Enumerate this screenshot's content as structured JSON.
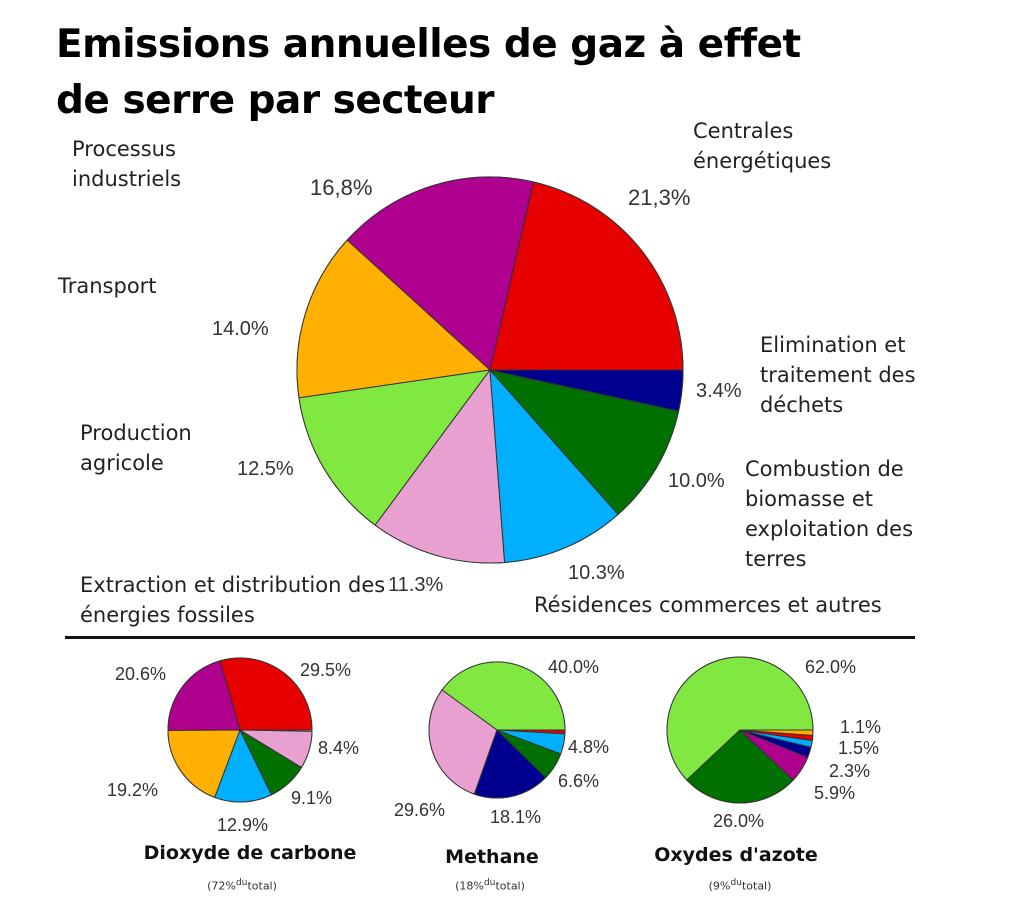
{
  "chart_data": [
    {
      "type": "pie",
      "title": "Emissions annuelles de gaz à effet de serre par secteur",
      "title_lines": [
        "Emissions annuelles de gaz à effet",
        "de serre par secteur"
      ],
      "start": "east, counterclockwise",
      "slices": [
        {
          "label": "Centrales énergétiques",
          "value": 21.3,
          "value_label": "21,3%",
          "color": "#e60000"
        },
        {
          "label": "Processus industriels",
          "value": 16.8,
          "value_label": "16,8%",
          "color": "#b0008f"
        },
        {
          "label": "Transport",
          "value": 14.0,
          "value_label": "14.0%",
          "color": "#ffb000"
        },
        {
          "label": "Production agricole",
          "value": 12.5,
          "value_label": "12.5%",
          "color": "#80e840"
        },
        {
          "label": "Extraction et distribution des énergies fossiles",
          "value": 11.3,
          "value_label": "11.3%",
          "color": "#e8a0d0"
        },
        {
          "label": "Résidences commerces et autres",
          "value": 10.3,
          "value_label": "10.3%",
          "color": "#00b0ff"
        },
        {
          "label": "Combustion de biomasse et exploitation des terres",
          "value": 10.0,
          "value_label": "10.0%",
          "color": "#007000"
        },
        {
          "label": "Elimination et traitement des déchets",
          "value": 3.4,
          "value_label": "3.4%",
          "color": "#000090"
        }
      ]
    },
    {
      "type": "pie",
      "title": "Dioxyde de carbone",
      "subtitle_pct": "(72%",
      "subtitle_du": "du",
      "subtitle_total": "total)",
      "slices": [
        {
          "value": 29.5,
          "value_label": "29.5%",
          "color": "#e60000"
        },
        {
          "value": 20.6,
          "value_label": "20.6%",
          "color": "#b0008f"
        },
        {
          "value": 19.2,
          "value_label": "19.2%",
          "color": "#ffb000"
        },
        {
          "value": 12.9,
          "value_label": "12.9%",
          "color": "#00b0ff"
        },
        {
          "value": 9.1,
          "value_label": "9.1%",
          "color": "#007000"
        },
        {
          "value": 8.4,
          "value_label": "8.4%",
          "color": "#e8a0d0"
        }
      ]
    },
    {
      "type": "pie",
      "title": "Methane",
      "subtitle_pct": "(18%",
      "subtitle_du": "du",
      "subtitle_total": "total)",
      "slices": [
        {
          "value": 40.0,
          "value_label": "40.0%",
          "color": "#80e840"
        },
        {
          "value": 29.6,
          "value_label": "29.6%",
          "color": "#e8a0d0"
        },
        {
          "value": 18.1,
          "value_label": "18.1%",
          "color": "#000090"
        },
        {
          "value": 6.6,
          "value_label": "6.6%",
          "color": "#007000"
        },
        {
          "value": 4.8,
          "value_label": "4.8%",
          "color": "#00b0ff"
        }
      ]
    },
    {
      "type": "pie",
      "title": "Oxydes d'azote",
      "subtitle_pct": "(9%",
      "subtitle_du": "du",
      "subtitle_total": "total)",
      "slices": [
        {
          "value": 62.0,
          "value_label": "62.0%",
          "color": "#80e840"
        },
        {
          "value": 26.0,
          "value_label": "26.0%",
          "color": "#007000"
        },
        {
          "value": 5.9,
          "value_label": "5.9%",
          "color": "#b0008f"
        },
        {
          "value": 2.3,
          "value_label": "2.3%",
          "color": "#000090"
        },
        {
          "value": 1.5,
          "value_label": "1.5%",
          "color": "#00b0ff"
        },
        {
          "value": 1.1,
          "value_label": "1.1%",
          "color": "#e60000"
        }
      ]
    }
  ]
}
